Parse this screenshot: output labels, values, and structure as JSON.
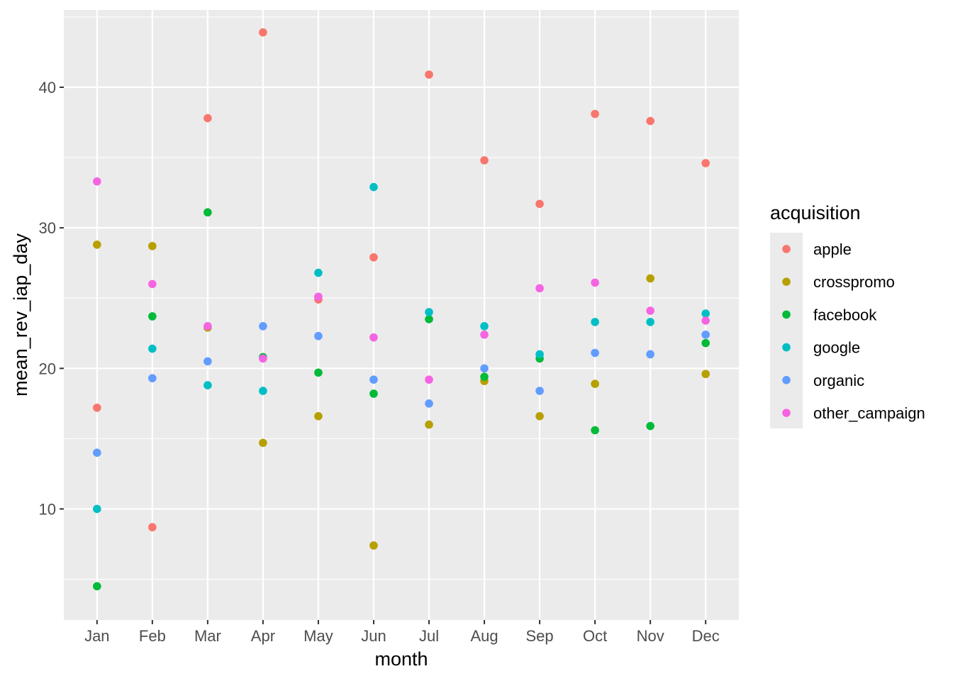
{
  "chart_data": {
    "type": "scatter",
    "title": "",
    "xlabel": "month",
    "ylabel": "mean_rev_iap_day",
    "categories": [
      "Jan",
      "Feb",
      "Mar",
      "Apr",
      "May",
      "Jun",
      "Jul",
      "Aug",
      "Sep",
      "Oct",
      "Nov",
      "Dec"
    ],
    "ylim": [
      2.1,
      45.5
    ],
    "yticks": [
      10,
      20,
      30,
      40
    ],
    "grid": true,
    "legend": {
      "title": "acquisition",
      "position": "right"
    },
    "series": [
      {
        "name": "apple",
        "color": "#F8766D",
        "values": [
          17.2,
          8.7,
          37.8,
          43.9,
          24.9,
          27.9,
          40.9,
          34.8,
          31.7,
          38.1,
          37.6,
          34.6
        ]
      },
      {
        "name": "crosspromo",
        "color": "#B79F00",
        "values": [
          28.8,
          28.7,
          22.9,
          14.7,
          16.6,
          7.4,
          16.0,
          19.1,
          16.6,
          18.9,
          26.4,
          19.6
        ]
      },
      {
        "name": "facebook",
        "color": "#00BA38",
        "values": [
          4.5,
          23.7,
          31.1,
          20.8,
          19.7,
          18.2,
          23.5,
          19.4,
          20.7,
          15.6,
          15.9,
          21.8
        ]
      },
      {
        "name": "google",
        "color": "#00BFC4",
        "values": [
          10.0,
          21.4,
          18.8,
          18.4,
          26.8,
          32.9,
          24.0,
          23.0,
          21.0,
          23.3,
          23.3,
          23.9
        ]
      },
      {
        "name": "organic",
        "color": "#619CFF",
        "values": [
          14.0,
          19.3,
          20.5,
          23.0,
          22.3,
          19.2,
          17.5,
          20.0,
          18.4,
          21.1,
          21.0,
          22.4
        ]
      },
      {
        "name": "other_campaign",
        "color": "#F564E3",
        "values": [
          33.3,
          26.0,
          23.0,
          20.7,
          25.1,
          22.2,
          19.2,
          22.4,
          25.7,
          26.1,
          24.1,
          23.4
        ]
      }
    ]
  }
}
